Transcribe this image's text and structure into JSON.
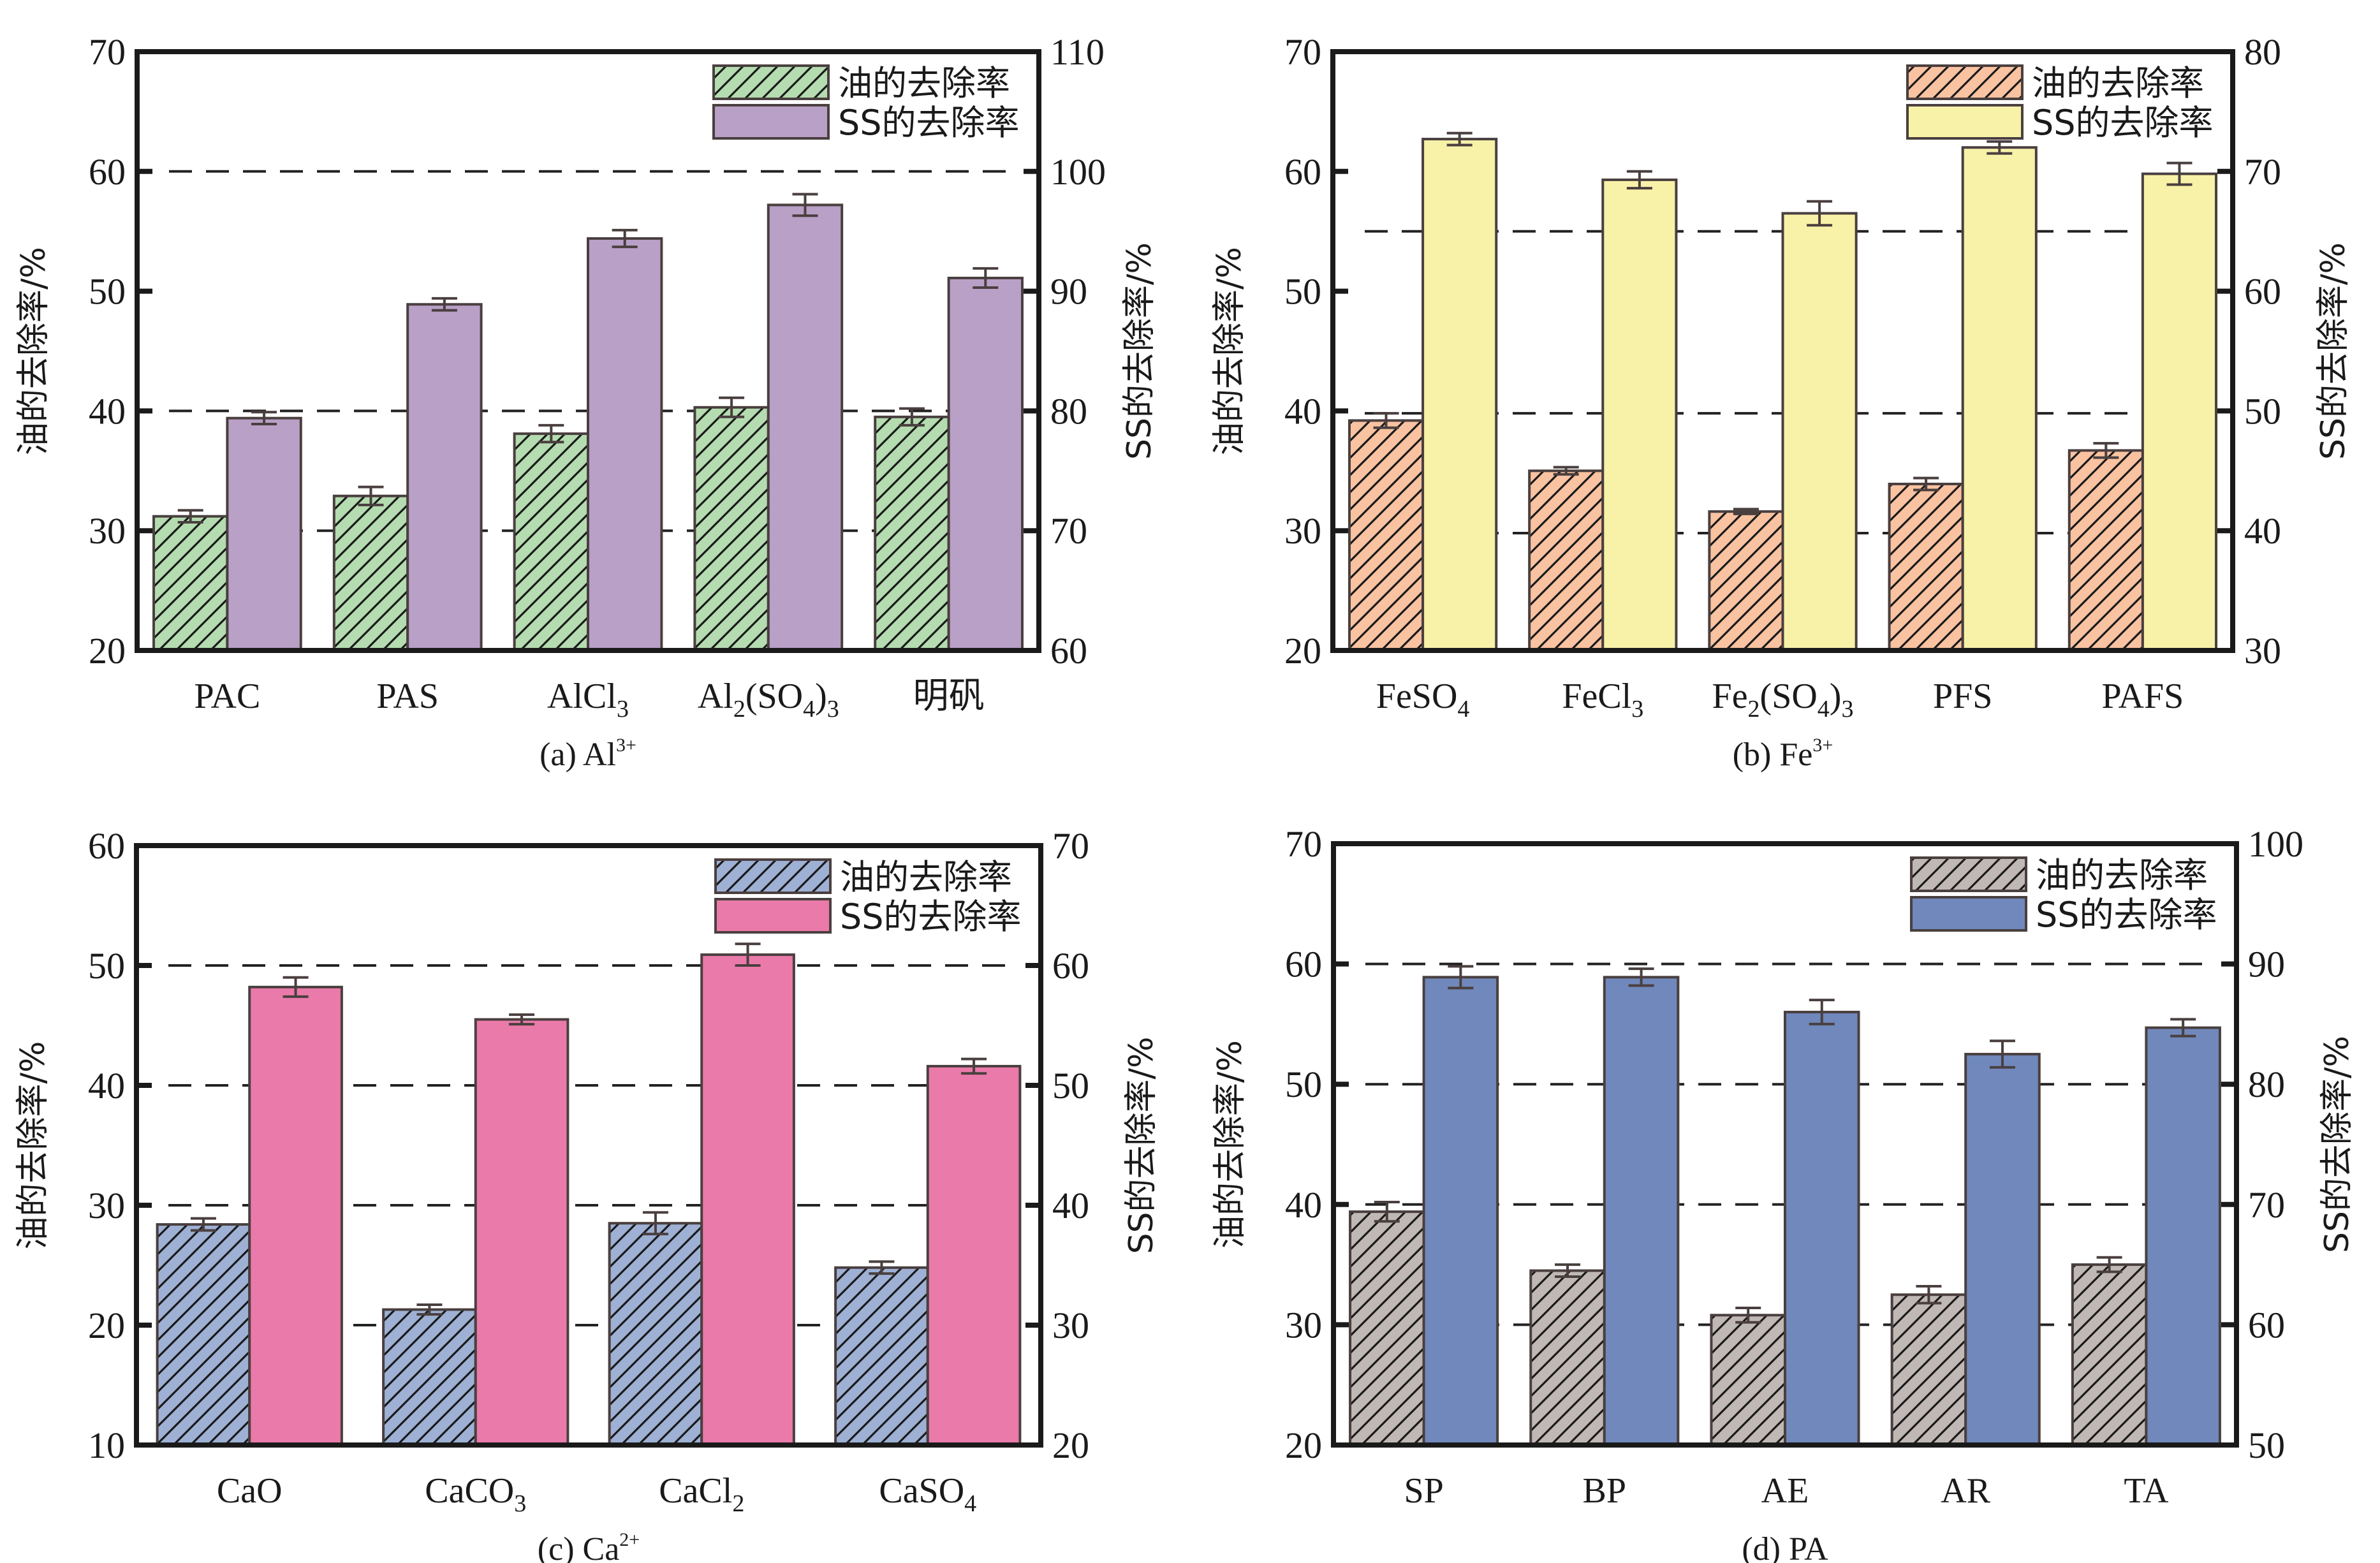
{
  "chart_data": [
    {
      "id": "a",
      "type": "bar",
      "caption": "(a) Al",
      "caption_sup": "3+",
      "categories": [
        {
          "main": "PAC",
          "parts": [
            [
              "PAC",
              ""
            ]
          ]
        },
        {
          "main": "PAS",
          "parts": [
            [
              "PAS",
              ""
            ]
          ]
        },
        {
          "main": "AlCl3",
          "parts": [
            [
              "AlCl",
              ""
            ],
            [
              "3",
              "sub"
            ]
          ]
        },
        {
          "main": "Al2(SO4)3",
          "parts": [
            [
              "Al",
              ""
            ],
            [
              "2",
              "sub"
            ],
            [
              "(SO",
              ""
            ],
            [
              "4",
              "sub"
            ],
            [
              ")",
              ""
            ],
            [
              "3",
              "sub"
            ]
          ]
        },
        {
          "main": "明矾",
          "parts": [
            [
              "明矾",
              ""
            ]
          ]
        }
      ],
      "ylabel": "油的去除率/%",
      "y2label": "SS的去除率/%",
      "ylim": [
        20,
        70
      ],
      "y2lim": [
        60,
        110
      ],
      "yticks": [
        20,
        30,
        40,
        50,
        60,
        70
      ],
      "y2ticks": [
        60,
        70,
        80,
        90,
        100,
        110
      ],
      "grid_dashed_at_left_units": [
        30,
        40,
        60
      ],
      "legend_position": "top-right",
      "series": [
        {
          "name": "油的去除率",
          "axis": "left",
          "color": "#b4dcb0",
          "hatch": true,
          "values": [
            31.2,
            32.9,
            38.1,
            40.3,
            39.5
          ],
          "errors": [
            0.5,
            0.75,
            0.7,
            0.8,
            0.7
          ]
        },
        {
          "name": "SS的去除率",
          "axis": "right",
          "color": "#b8a0c6",
          "hatch": false,
          "values": [
            79.4,
            88.9,
            94.4,
            97.2,
            91.1
          ],
          "errors": [
            0.5,
            0.5,
            0.7,
            0.9,
            0.8
          ]
        }
      ]
    },
    {
      "id": "b",
      "type": "bar",
      "caption": "(b) Fe",
      "caption_sup": "3+",
      "categories": [
        {
          "main": "FeSO4",
          "parts": [
            [
              "FeSO",
              ""
            ],
            [
              "4",
              "sub"
            ]
          ]
        },
        {
          "main": "FeCl3",
          "parts": [
            [
              "FeCl",
              ""
            ],
            [
              "3",
              "sub"
            ]
          ]
        },
        {
          "main": "Fe2(SO4)3",
          "parts": [
            [
              "Fe",
              ""
            ],
            [
              "2",
              "sub"
            ],
            [
              "(SO",
              ""
            ],
            [
              "4",
              "sub"
            ],
            [
              ")",
              ""
            ],
            [
              "3",
              "sub"
            ]
          ]
        },
        {
          "main": "PFS",
          "parts": [
            [
              "PFS",
              ""
            ]
          ]
        },
        {
          "main": "PAFS",
          "parts": [
            [
              "PAFS",
              ""
            ]
          ]
        }
      ],
      "ylabel": "油的去除率/%",
      "y2label": "SS的去除率/%",
      "ylim": [
        20,
        70
      ],
      "y2lim": [
        30,
        80
      ],
      "yticks": [
        20,
        30,
        40,
        50,
        60,
        70
      ],
      "y2ticks": [
        30,
        40,
        50,
        60,
        70,
        80
      ],
      "grid_dashed_at_left_units": [
        29.8,
        39.8,
        55
      ],
      "legend_position": "top-right",
      "series": [
        {
          "name": "油的去除率",
          "axis": "left",
          "color": "#f9c2a0",
          "hatch": true,
          "values": [
            39.2,
            35.0,
            31.6,
            33.9,
            36.7
          ],
          "errors": [
            0.6,
            0.3,
            0.2,
            0.5,
            0.6
          ]
        },
        {
          "name": "SS的去除率",
          "axis": "right",
          "color": "#f7f2a8",
          "hatch": false,
          "values": [
            72.7,
            69.3,
            66.5,
            72.0,
            69.8
          ],
          "errors": [
            0.5,
            0.7,
            1.0,
            0.5,
            0.9
          ]
        }
      ]
    },
    {
      "id": "c",
      "type": "bar",
      "caption": "(c) Ca",
      "caption_sup": "2+",
      "categories": [
        {
          "main": "CaO",
          "parts": [
            [
              "CaO",
              ""
            ]
          ]
        },
        {
          "main": "CaCO3",
          "parts": [
            [
              "CaCO",
              ""
            ],
            [
              "3",
              "sub"
            ]
          ]
        },
        {
          "main": "CaCl2",
          "parts": [
            [
              "CaCl",
              ""
            ],
            [
              "2",
              "sub"
            ]
          ]
        },
        {
          "main": "CaSO4",
          "parts": [
            [
              "CaSO",
              ""
            ],
            [
              "4",
              "sub"
            ]
          ]
        }
      ],
      "ylabel": "油的去除率/%",
      "y2label": "SS的去除率/%",
      "ylim": [
        10,
        60
      ],
      "y2lim": [
        20,
        70
      ],
      "yticks": [
        10,
        20,
        30,
        40,
        50,
        60
      ],
      "y2ticks": [
        20,
        30,
        40,
        50,
        60,
        70
      ],
      "grid_dashed_at_left_units": [
        20,
        30,
        40,
        50
      ],
      "legend_position": "top-right",
      "series": [
        {
          "name": "油的去除率",
          "axis": "left",
          "color": "#9eb0d4",
          "hatch": true,
          "values": [
            28.4,
            21.3,
            28.5,
            24.8
          ],
          "errors": [
            0.5,
            0.4,
            0.9,
            0.5
          ]
        },
        {
          "name": "SS的去除率",
          "axis": "right",
          "color": "#ea7aaa",
          "hatch": false,
          "values": [
            58.2,
            55.5,
            60.9,
            51.6
          ],
          "errors": [
            0.8,
            0.4,
            0.9,
            0.6
          ]
        }
      ]
    },
    {
      "id": "d",
      "type": "bar",
      "caption": "(d) PA",
      "caption_sup": "",
      "categories": [
        {
          "main": "SP",
          "parts": [
            [
              "SP",
              ""
            ]
          ]
        },
        {
          "main": "BP",
          "parts": [
            [
              "BP",
              ""
            ]
          ]
        },
        {
          "main": "AE",
          "parts": [
            [
              "AE",
              ""
            ]
          ]
        },
        {
          "main": "AR",
          "parts": [
            [
              "AR",
              ""
            ]
          ]
        },
        {
          "main": "TA",
          "parts": [
            [
              "TA",
              ""
            ]
          ]
        }
      ],
      "ylabel": "油的去除率/%",
      "y2label": "SS的去除率/%",
      "ylim": [
        20,
        70
      ],
      "y2lim": [
        50,
        100
      ],
      "yticks": [
        20,
        30,
        40,
        50,
        60,
        70
      ],
      "y2ticks": [
        50,
        60,
        70,
        80,
        90,
        100
      ],
      "grid_dashed_at_left_units": [
        30,
        40,
        50,
        60
      ],
      "legend_position": "top-right",
      "series": [
        {
          "name": "油的去除率",
          "axis": "left",
          "color": "#c0b8b4",
          "hatch": true,
          "values": [
            39.4,
            34.5,
            30.8,
            32.5,
            35.0
          ],
          "errors": [
            0.8,
            0.5,
            0.6,
            0.7,
            0.6
          ]
        },
        {
          "name": "SS的去除率",
          "axis": "right",
          "color": "#7088bb",
          "hatch": false,
          "values": [
            88.9,
            88.9,
            86.0,
            82.5,
            84.7
          ],
          "errors": [
            0.9,
            0.7,
            1.0,
            1.1,
            0.7
          ]
        }
      ]
    }
  ]
}
